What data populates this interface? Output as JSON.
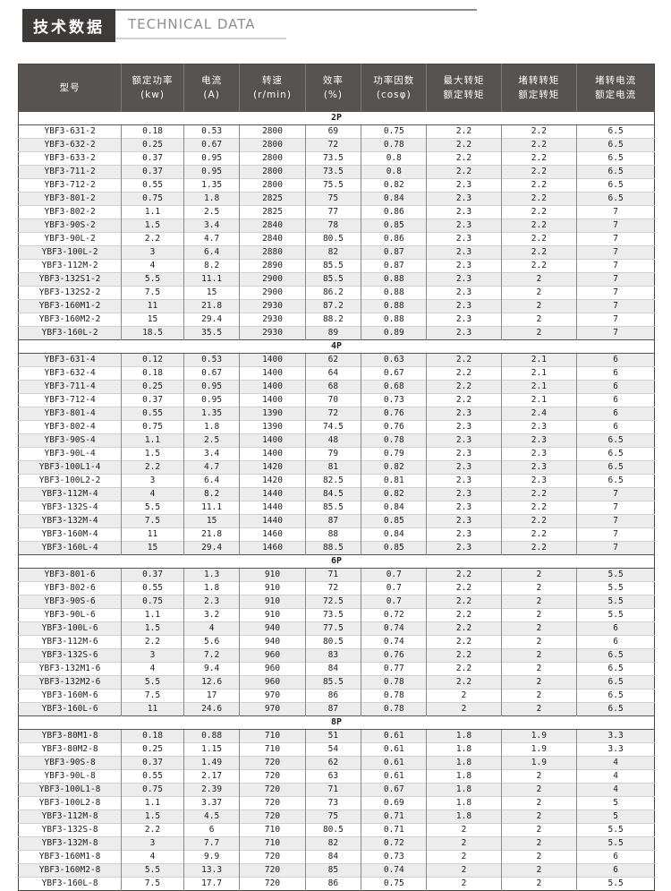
{
  "title": {
    "zh": "技术数据",
    "en": "TECHNICAL DATA"
  },
  "colors": {
    "title_box_bg": "#3e3a39",
    "header_bg": "#575350",
    "header_text": "#ffffff",
    "row_alt_bg": "#ececec",
    "border_dark": "#474342",
    "border_light": "#cfcfcf"
  },
  "table": {
    "columns": [
      {
        "line1": "型号",
        "line2": ""
      },
      {
        "line1": "额定功率",
        "line2": "(kw)"
      },
      {
        "line1": "电流",
        "line2": "(A)"
      },
      {
        "line1": "转速",
        "line2": "(r/min)"
      },
      {
        "line1": "效率",
        "line2": "(%)"
      },
      {
        "line1": "功率因数",
        "line2": "(cosφ)"
      },
      {
        "line1": "最大转矩",
        "line2": "额定转矩"
      },
      {
        "line1": "堵转转矩",
        "line2": "额定转矩"
      },
      {
        "line1": "堵转电流",
        "line2": "额定电流"
      }
    ],
    "sections": [
      {
        "label": "2P",
        "rows": [
          [
            "YBF3-631-2",
            "0.18",
            "0.53",
            "2800",
            "69",
            "0.75",
            "2.2",
            "2.2",
            "6.5"
          ],
          [
            "YBF3-632-2",
            "0.25",
            "0.67",
            "2800",
            "72",
            "0.78",
            "2.2",
            "2.2",
            "6.5"
          ],
          [
            "YBF3-633-2",
            "0.37",
            "0.95",
            "2800",
            "73.5",
            "0.8",
            "2.2",
            "2.2",
            "6.5"
          ],
          [
            "YBF3-711-2",
            "0.37",
            "0.95",
            "2800",
            "73.5",
            "0.8",
            "2.2",
            "2.2",
            "6.5"
          ],
          [
            "YBF3-712-2",
            "0.55",
            "1.35",
            "2800",
            "75.5",
            "0.82",
            "2.3",
            "2.2",
            "6.5"
          ],
          [
            "YBF3-801-2",
            "0.75",
            "1.8",
            "2825",
            "75",
            "0.84",
            "2.3",
            "2.2",
            "6.5"
          ],
          [
            "YBF3-802-2",
            "1.1",
            "2.5",
            "2825",
            "77",
            "0.86",
            "2.3",
            "2.2",
            "7"
          ],
          [
            "YBF3-90S-2",
            "1.5",
            "3.4",
            "2840",
            "78",
            "0.85",
            "2.3",
            "2.2",
            "7"
          ],
          [
            "YBF3-90L-2",
            "2.2",
            "4.7",
            "2840",
            "80.5",
            "0.86",
            "2.3",
            "2.2",
            "7"
          ],
          [
            "YBF3-100L-2",
            "3",
            "6.4",
            "2880",
            "82",
            "0.87",
            "2.3",
            "2.2",
            "7"
          ],
          [
            "YBF3-112M-2",
            "4",
            "8.2",
            "2890",
            "85.5",
            "0.87",
            "2.3",
            "2.2",
            "7"
          ],
          [
            "YBF3-132S1-2",
            "5.5",
            "11.1",
            "2900",
            "85.5",
            "0.88",
            "2.3",
            "2",
            "7"
          ],
          [
            "YBF3-132S2-2",
            "7.5",
            "15",
            "2900",
            "86.2",
            "0.88",
            "2.3",
            "2",
            "7"
          ],
          [
            "YBF3-160M1-2",
            "11",
            "21.8",
            "2930",
            "87.2",
            "0.88",
            "2.3",
            "2",
            "7"
          ],
          [
            "YBF3-160M2-2",
            "15",
            "29.4",
            "2930",
            "88.2",
            "0.88",
            "2.3",
            "2",
            "7"
          ],
          [
            "YBF3-160L-2",
            "18.5",
            "35.5",
            "2930",
            "89",
            "0.89",
            "2.3",
            "2",
            "7"
          ]
        ]
      },
      {
        "label": "4P",
        "rows": [
          [
            "YBF3-631-4",
            "0.12",
            "0.53",
            "1400",
            "62",
            "0.63",
            "2.2",
            "2.1",
            "6"
          ],
          [
            "YBF3-632-4",
            "0.18",
            "0.67",
            "1400",
            "64",
            "0.67",
            "2.2",
            "2.1",
            "6"
          ],
          [
            "YBF3-711-4",
            "0.25",
            "0.95",
            "1400",
            "68",
            "0.68",
            "2.2",
            "2.1",
            "6"
          ],
          [
            "YBF3-712-4",
            "0.37",
            "0.95",
            "1400",
            "70",
            "0.73",
            "2.2",
            "2.1",
            "6"
          ],
          [
            "YBF3-801-4",
            "0.55",
            "1.35",
            "1390",
            "72",
            "0.76",
            "2.3",
            "2.4",
            "6"
          ],
          [
            "YBF3-802-4",
            "0.75",
            "1.8",
            "1390",
            "74.5",
            "0.76",
            "2.3",
            "2.3",
            "6"
          ],
          [
            "YBF3-90S-4",
            "1.1",
            "2.5",
            "1400",
            "48",
            "0.78",
            "2.3",
            "2.3",
            "6.5"
          ],
          [
            "YBF3-90L-4",
            "1.5",
            "3.4",
            "1400",
            "79",
            "0.79",
            "2.3",
            "2.3",
            "6.5"
          ],
          [
            "YBF3-100L1-4",
            "2.2",
            "4.7",
            "1420",
            "81",
            "0.82",
            "2.3",
            "2.3",
            "6.5"
          ],
          [
            "YBF3-100L2-2",
            "3",
            "6.4",
            "1420",
            "82.5",
            "0.81",
            "2.3",
            "2.3",
            "6.5"
          ],
          [
            "YBF3-112M-4",
            "4",
            "8.2",
            "1440",
            "84.5",
            "0.82",
            "2.3",
            "2.2",
            "7"
          ],
          [
            "YBF3-132S-4",
            "5.5",
            "11.1",
            "1440",
            "85.5",
            "0.84",
            "2.3",
            "2.2",
            "7"
          ],
          [
            "YBF3-132M-4",
            "7.5",
            "15",
            "1440",
            "87",
            "0.85",
            "2.3",
            "2.2",
            "7"
          ],
          [
            "YBF3-160M-4",
            "11",
            "21.8",
            "1460",
            "88",
            "0.84",
            "2.3",
            "2.2",
            "7"
          ],
          [
            "YBF3-160L-4",
            "15",
            "29.4",
            "1460",
            "88.5",
            "0.85",
            "2.3",
            "2.2",
            "7"
          ]
        ]
      },
      {
        "label": "6P",
        "rows": [
          [
            "YBF3-801-6",
            "0.37",
            "1.3",
            "910",
            "71",
            "0.7",
            "2.2",
            "2",
            "5.5"
          ],
          [
            "YBF3-802-6",
            "0.55",
            "1.8",
            "910",
            "72",
            "0.7",
            "2.2",
            "2",
            "5.5"
          ],
          [
            "YBF3-90S-6",
            "0.75",
            "2.3",
            "910",
            "72.5",
            "0.7",
            "2.2",
            "2",
            "5.5"
          ],
          [
            "YBF3-90L-6",
            "1.1",
            "3.2",
            "910",
            "73.5",
            "0.72",
            "2.2",
            "2",
            "5.5"
          ],
          [
            "YBF3-100L-6",
            "1.5",
            "4",
            "940",
            "77.5",
            "0.74",
            "2.2",
            "2",
            "6"
          ],
          [
            "YBF3-112M-6",
            "2.2",
            "5.6",
            "940",
            "80.5",
            "0.74",
            "2.2",
            "2",
            "6"
          ],
          [
            "YBF3-132S-6",
            "3",
            "7.2",
            "960",
            "83",
            "0.76",
            "2.2",
            "2",
            "6.5"
          ],
          [
            "YBF3-132M1-6",
            "4",
            "9.4",
            "960",
            "84",
            "0.77",
            "2.2",
            "2",
            "6.5"
          ],
          [
            "YBF3-132M2-6",
            "5.5",
            "12.6",
            "960",
            "85.5",
            "0.78",
            "2.2",
            "2",
            "6.5"
          ],
          [
            "YBF3-160M-6",
            "7.5",
            "17",
            "970",
            "86",
            "0.78",
            "2",
            "2",
            "6.5"
          ],
          [
            "YBF3-160L-6",
            "11",
            "24.6",
            "970",
            "87",
            "0.78",
            "2",
            "2",
            "6.5"
          ]
        ]
      },
      {
        "label": "8P",
        "rows": [
          [
            "YBF3-80M1-8",
            "0.18",
            "0.88",
            "710",
            "51",
            "0.61",
            "1.8",
            "1.9",
            "3.3"
          ],
          [
            "YBF3-80M2-8",
            "0.25",
            "1.15",
            "710",
            "54",
            "0.61",
            "1.8",
            "1.9",
            "3.3"
          ],
          [
            "YBF3-90S-8",
            "0.37",
            "1.49",
            "720",
            "62",
            "0.61",
            "1.8",
            "1.9",
            "4"
          ],
          [
            "YBF3-90L-8",
            "0.55",
            "2.17",
            "720",
            "63",
            "0.61",
            "1.8",
            "2",
            "4"
          ],
          [
            "YBF3-100L1-8",
            "0.75",
            "2.39",
            "720",
            "71",
            "0.67",
            "1.8",
            "2",
            "4"
          ],
          [
            "YBF3-100L2-8",
            "1.1",
            "3.37",
            "720",
            "73",
            "0.69",
            "1.8",
            "2",
            "5"
          ],
          [
            "YBF3-112M-8",
            "1.5",
            "4.5",
            "720",
            "75",
            "0.71",
            "1.8",
            "2",
            "5"
          ],
          [
            "YBF3-132S-8",
            "2.2",
            "6",
            "710",
            "80.5",
            "0.71",
            "2",
            "2",
            "5.5"
          ],
          [
            "YBF3-132M-8",
            "3",
            "7.7",
            "710",
            "82",
            "0.72",
            "2",
            "2",
            "5.5"
          ],
          [
            "YBF3-160M1-8",
            "4",
            "9.9",
            "720",
            "84",
            "0.73",
            "2",
            "2",
            "6"
          ],
          [
            "YBF3-160M2-8",
            "5.5",
            "13.3",
            "720",
            "85",
            "0.74",
            "2",
            "2",
            "6"
          ],
          [
            "YBF3-160L-8",
            "7.5",
            "17.7",
            "720",
            "86",
            "0.75",
            "2",
            "2",
            "5.5"
          ]
        ]
      }
    ]
  }
}
